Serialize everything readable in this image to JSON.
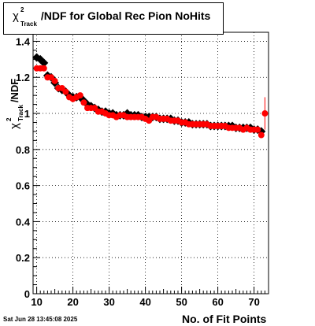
{
  "title": {
    "chi": "χ",
    "sup": "2",
    "sub": "Track",
    "rest": "/NDF for Global Rec Pion NoHits"
  },
  "ylabel": {
    "chi": "χ",
    "sup": "2",
    "sub": "Track",
    "rest": "/NDF"
  },
  "xlabel": "No. of Fit Points",
  "timestamp": "Sat Jun 28 13:45:08 2025",
  "colors": {
    "series_black": "#000000",
    "series_red": "#ff0000",
    "grid": "#000000",
    "frame": "#000000"
  },
  "chart_data": {
    "type": "scatter",
    "xlim": [
      9,
      74
    ],
    "ylim": [
      0,
      1.45
    ],
    "x_ticks": [
      10,
      20,
      30,
      40,
      50,
      60,
      70
    ],
    "y_ticks": [
      0,
      0.2,
      0.4,
      0.6,
      0.8,
      1,
      1.2,
      1.4
    ],
    "x_tick_labels": [
      "10",
      "20",
      "30",
      "40",
      "50",
      "60",
      "70"
    ],
    "y_tick_labels": [
      "0",
      "0.2",
      "0.4",
      "0.6",
      "0.8",
      "1",
      "1.2",
      "1.4"
    ],
    "grid": true,
    "series": [
      {
        "color": "black",
        "marker": "diamond",
        "x": [
          10,
          11,
          12,
          13,
          14,
          15,
          16,
          17,
          18,
          19,
          20,
          21,
          22,
          23,
          24,
          25,
          26,
          27,
          28,
          29,
          30,
          31,
          32,
          33,
          34,
          35,
          36,
          37,
          38,
          39,
          40,
          41,
          42,
          43,
          44,
          45,
          46,
          47,
          48,
          49,
          50,
          51,
          52,
          53,
          54,
          55,
          56,
          57,
          58,
          59,
          60,
          61,
          62,
          63,
          64,
          65,
          66,
          67,
          68,
          69,
          70,
          71,
          72
        ],
        "y": [
          1.31,
          1.3,
          1.28,
          1.21,
          1.2,
          1.17,
          1.14,
          1.13,
          1.12,
          1.1,
          1.09,
          1.09,
          1.09,
          1.07,
          1.05,
          1.04,
          1.03,
          1.02,
          1.01,
          1.01,
          1.0,
          1.0,
          0.99,
          0.99,
          0.99,
          1.0,
          0.99,
          0.99,
          0.99,
          0.98,
          0.98,
          0.98,
          0.98,
          0.98,
          0.97,
          0.97,
          0.97,
          0.97,
          0.96,
          0.96,
          0.95,
          0.95,
          0.95,
          0.94,
          0.94,
          0.94,
          0.94,
          0.94,
          0.93,
          0.93,
          0.93,
          0.93,
          0.93,
          0.93,
          0.93,
          0.92,
          0.92,
          0.92,
          0.92,
          0.92,
          0.91,
          0.91,
          0.9
        ]
      },
      {
        "color": "red",
        "marker": "circle",
        "x": [
          10,
          11,
          12,
          13,
          14,
          15,
          16,
          17,
          18,
          19,
          20,
          21,
          22,
          23,
          24,
          25,
          26,
          27,
          28,
          29,
          30,
          31,
          32,
          33,
          34,
          35,
          36,
          37,
          38,
          39,
          40,
          41,
          42,
          43,
          44,
          45,
          46,
          47,
          48,
          49,
          50,
          51,
          52,
          53,
          54,
          55,
          56,
          57,
          58,
          59,
          60,
          61,
          62,
          63,
          64,
          65,
          66,
          67,
          68,
          69,
          70,
          71,
          72,
          73
        ],
        "y": [
          1.25,
          1.25,
          1.25,
          1.2,
          1.2,
          1.18,
          1.14,
          1.14,
          1.12,
          1.09,
          1.08,
          1.09,
          1.1,
          1.06,
          1.03,
          1.03,
          1.03,
          1.01,
          1.01,
          1.0,
          0.99,
          0.99,
          0.98,
          0.99,
          0.99,
          0.98,
          0.98,
          0.98,
          0.98,
          0.98,
          0.97,
          0.96,
          0.98,
          0.98,
          0.97,
          0.97,
          0.97,
          0.96,
          0.96,
          0.96,
          0.95,
          0.95,
          0.94,
          0.94,
          0.94,
          0.94,
          0.94,
          0.94,
          0.93,
          0.93,
          0.93,
          0.93,
          0.93,
          0.92,
          0.92,
          0.92,
          0.92,
          0.91,
          0.92,
          0.91,
          0.91,
          0.91,
          0.88,
          1.0
        ],
        "yerr": [
          0,
          0,
          0,
          0,
          0,
          0,
          0,
          0,
          0,
          0,
          0,
          0,
          0,
          0,
          0,
          0,
          0,
          0,
          0,
          0,
          0,
          0,
          0,
          0,
          0,
          0,
          0,
          0,
          0,
          0,
          0,
          0,
          0,
          0,
          0,
          0,
          0,
          0,
          0,
          0,
          0,
          0,
          0,
          0,
          0,
          0,
          0,
          0,
          0,
          0,
          0,
          0,
          0,
          0,
          0,
          0,
          0,
          0,
          0,
          0,
          0,
          0,
          0.015,
          0.09
        ]
      }
    ]
  }
}
